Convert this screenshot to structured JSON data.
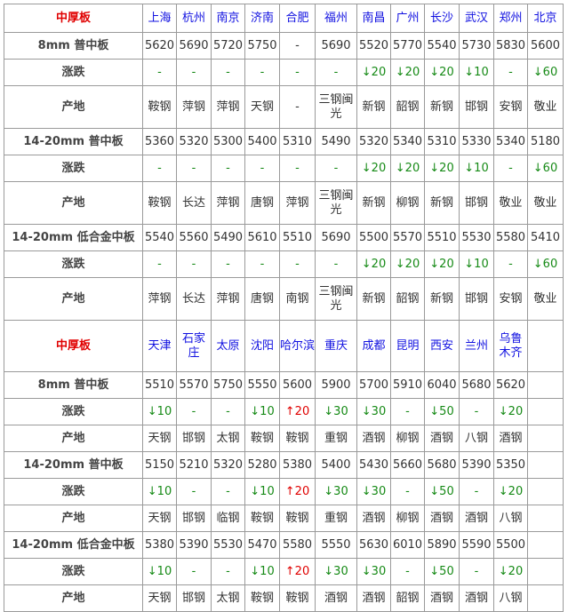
{
  "colors": {
    "title": "#e00000",
    "city": "#1010e0",
    "down": "#168a16",
    "up": "#e00000"
  },
  "sections": [
    {
      "title": "中厚板",
      "cities": [
        "上海",
        "杭州",
        "南京",
        "济南",
        "合肥",
        "福州",
        "南昌",
        "广州",
        "长沙",
        "武汉",
        "郑州",
        "北京"
      ],
      "rows": [
        {
          "label": "8mm 普中板",
          "type": "price",
          "values": [
            "5620",
            "5690",
            "5720",
            "5750",
            "-",
            "5690",
            "5520",
            "5770",
            "5540",
            "5730",
            "5830",
            "5600"
          ]
        },
        {
          "label": "涨跌",
          "type": "change",
          "values": [
            "-",
            "-",
            "-",
            "-",
            "-",
            "-",
            "↓20",
            "↓20",
            "↓20",
            "↓10",
            "-",
            "↓60"
          ]
        },
        {
          "label": "产地",
          "type": "origin",
          "values": [
            "鞍钢",
            "萍钢",
            "萍钢",
            "天钢",
            "-",
            "三钢闽光",
            "新钢",
            "韶钢",
            "新钢",
            "邯钢",
            "安钢",
            "敬业"
          ]
        },
        {
          "label": "14-20mm 普中板",
          "type": "price",
          "values": [
            "5360",
            "5320",
            "5300",
            "5400",
            "5310",
            "5490",
            "5320",
            "5340",
            "5310",
            "5330",
            "5340",
            "5180"
          ]
        },
        {
          "label": "涨跌",
          "type": "change",
          "values": [
            "-",
            "-",
            "-",
            "-",
            "-",
            "-",
            "↓20",
            "↓20",
            "↓20",
            "↓10",
            "-",
            "↓60"
          ]
        },
        {
          "label": "产地",
          "type": "origin",
          "values": [
            "鞍钢",
            "长达",
            "萍钢",
            "唐钢",
            "萍钢",
            "三钢闽光",
            "新钢",
            "柳钢",
            "新钢",
            "邯钢",
            "敬业",
            "敬业"
          ]
        },
        {
          "label": "14-20mm 低合金中板",
          "type": "price",
          "values": [
            "5540",
            "5560",
            "5490",
            "5610",
            "5510",
            "5690",
            "5500",
            "5570",
            "5510",
            "5530",
            "5580",
            "5410"
          ]
        },
        {
          "label": "涨跌",
          "type": "change",
          "values": [
            "-",
            "-",
            "-",
            "-",
            "-",
            "-",
            "↓20",
            "↓20",
            "↓20",
            "↓10",
            "-",
            "↓60"
          ]
        },
        {
          "label": "产地",
          "type": "origin",
          "values": [
            "萍钢",
            "长达",
            "萍钢",
            "唐钢",
            "南钢",
            "三钢闽光",
            "新钢",
            "韶钢",
            "新钢",
            "邯钢",
            "安钢",
            "敬业"
          ]
        }
      ]
    },
    {
      "title": "中厚板",
      "cities": [
        "天津",
        "石家庄",
        "太原",
        "沈阳",
        "哈尔滨",
        "重庆",
        "成都",
        "昆明",
        "西安",
        "兰州",
        "乌鲁木齐",
        ""
      ],
      "rows": [
        {
          "label": "8mm 普中板",
          "type": "price",
          "values": [
            "5510",
            "5570",
            "5750",
            "5550",
            "5600",
            "5900",
            "5700",
            "5910",
            "6040",
            "5680",
            "5620",
            ""
          ]
        },
        {
          "label": "涨跌",
          "type": "change",
          "values": [
            "↓10",
            "-",
            "-",
            "↓10",
            "↑20",
            "↓30",
            "↓30",
            "-",
            "↓50",
            "-",
            "↓20",
            ""
          ]
        },
        {
          "label": "产地",
          "type": "origin2",
          "values": [
            "天钢",
            "邯钢",
            "太钢",
            "鞍钢",
            "鞍钢",
            "重钢",
            "酒钢",
            "柳钢",
            "酒钢",
            "八钢",
            "酒钢",
            ""
          ]
        },
        {
          "label": "14-20mm 普中板",
          "type": "price",
          "values": [
            "5150",
            "5210",
            "5320",
            "5280",
            "5380",
            "5400",
            "5430",
            "5660",
            "5680",
            "5390",
            "5350",
            ""
          ]
        },
        {
          "label": "涨跌",
          "type": "change",
          "values": [
            "↓10",
            "-",
            "-",
            "↓10",
            "↑20",
            "↓30",
            "↓30",
            "-",
            "↓50",
            "-",
            "↓20",
            ""
          ]
        },
        {
          "label": "产地",
          "type": "origin2",
          "values": [
            "天钢",
            "邯钢",
            "临钢",
            "鞍钢",
            "鞍钢",
            "重钢",
            "酒钢",
            "柳钢",
            "酒钢",
            "酒钢",
            "八钢",
            ""
          ]
        },
        {
          "label": "14-20mm 低合金中板",
          "type": "price",
          "values": [
            "5380",
            "5390",
            "5530",
            "5470",
            "5580",
            "5550",
            "5630",
            "6010",
            "5890",
            "5590",
            "5500",
            ""
          ]
        },
        {
          "label": "涨跌",
          "type": "change",
          "values": [
            "↓10",
            "-",
            "-",
            "↓10",
            "↑20",
            "↓30",
            "↓30",
            "-",
            "↓50",
            "-",
            "↓20",
            ""
          ]
        },
        {
          "label": "产地",
          "type": "origin2",
          "values": [
            "天钢",
            "邯钢",
            "太钢",
            "鞍钢",
            "鞍钢",
            "酒钢",
            "酒钢",
            "韶钢",
            "酒钢",
            "酒钢",
            "八钢",
            ""
          ]
        }
      ]
    }
  ]
}
